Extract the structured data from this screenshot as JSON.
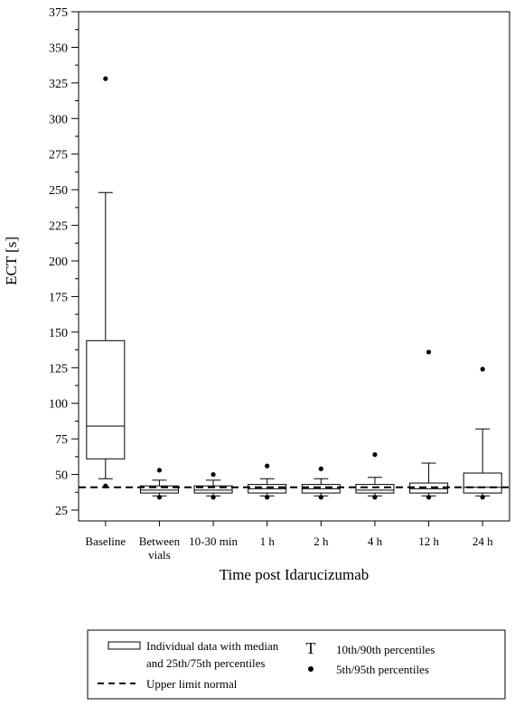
{
  "chart_data": {
    "type": "box",
    "ylabel": "ECT [s]",
    "xlabel": "Time post Idarucizumab",
    "ylim": [
      25,
      375
    ],
    "yticks": [
      25,
      50,
      75,
      100,
      125,
      150,
      175,
      200,
      225,
      250,
      275,
      300,
      325,
      350,
      375
    ],
    "categories": [
      [
        "Baseline"
      ],
      [
        "Between",
        "vials"
      ],
      [
        "10-30 min"
      ],
      [
        "1 h"
      ],
      [
        "2 h"
      ],
      [
        "4 h"
      ],
      [
        "12 h"
      ],
      [
        "24 h"
      ]
    ],
    "boxes": [
      {
        "p5": 42,
        "p10": 47,
        "q1": 61,
        "median": 84,
        "q3": 144,
        "p90": 248,
        "p95": 328
      },
      {
        "p5": 34,
        "p10": 35,
        "q1": 37,
        "median": 39,
        "q3": 42,
        "p90": 46,
        "p95": 53
      },
      {
        "p5": 34,
        "p10": 35,
        "q1": 37,
        "median": 39,
        "q3": 42,
        "p90": 46,
        "p95": 50
      },
      {
        "p5": 34,
        "p10": 35,
        "q1": 37,
        "median": 40,
        "q3": 43,
        "p90": 47,
        "p95": 56
      },
      {
        "p5": 34,
        "p10": 35,
        "q1": 37,
        "median": 40,
        "q3": 43,
        "p90": 47,
        "p95": 54
      },
      {
        "p5": 34,
        "p10": 35,
        "q1": 37,
        "median": 39,
        "q3": 43,
        "p90": 48,
        "p95": 64
      },
      {
        "p5": 34,
        "p10": 35,
        "q1": 37,
        "median": 40,
        "q3": 44,
        "p90": 58,
        "p95": 136
      },
      {
        "p5": 34,
        "p10": 35,
        "q1": 37,
        "median": 41,
        "q3": 51,
        "p90": 82,
        "p95": 124
      }
    ],
    "reference_line": {
      "value": 41,
      "style": "dashed"
    },
    "legend": {
      "box_label_line1": "Individual data with median",
      "box_label_line2": "and 25th/75th percentiles",
      "line_label": "Upper limit normal",
      "whisker_symbol": "T",
      "whisker_label": "10th/90th percentiles",
      "dot_label": "5th/95th percentiles",
      "placement": "bottom"
    }
  }
}
